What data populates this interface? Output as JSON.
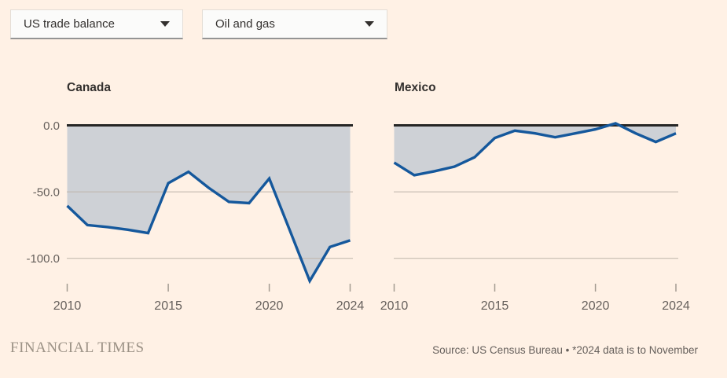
{
  "app": {
    "background_color": "#fff1e5"
  },
  "controls": {
    "metric_dropdown": {
      "value": "US trade balance"
    },
    "category_dropdown": {
      "value": "Oil and gas"
    }
  },
  "chart_data": {
    "type": "area",
    "x": [
      2010,
      2011,
      2012,
      2013,
      2014,
      2015,
      2016,
      2017,
      2018,
      2019,
      2020,
      2021,
      2022,
      2023,
      2024
    ],
    "x_tick_years": [
      2010,
      2015,
      2020,
      2024
    ],
    "x_tick_labels": [
      "2010",
      "2015",
      "2020",
      "2024"
    ],
    "y_ticks": [
      {
        "label": "0.0",
        "value": 0
      },
      {
        "label": "-50.0",
        "value": -50
      },
      {
        "label": "-100.0",
        "value": -100
      }
    ],
    "ylim": [
      -125,
      5
    ],
    "grid": true,
    "series": [
      {
        "name": "Canada",
        "values": [
          -60.5,
          -75,
          -76.5,
          -78.5,
          -81,
          -43.5,
          -35,
          -47,
          -57.5,
          -58.5,
          -40,
          -78.5,
          -117,
          -91.5,
          -86.5
        ]
      },
      {
        "name": "Mexico",
        "values": [
          -28,
          -37.5,
          -34.5,
          -31,
          -24,
          -9.5,
          -4,
          -6,
          -9,
          -6,
          -3,
          1.5,
          -6,
          -12.5,
          -6
        ]
      }
    ],
    "colors": {
      "line": "#15589c",
      "area_fill": "#ced1d6",
      "zero_line": "#262625",
      "gridline": "#beb5aa",
      "tick": "#a39b91",
      "axis_text": "#66605c"
    }
  },
  "footer": {
    "brand": "FINANCIAL TIMES",
    "source": "Source: US Census Bureau • *2024 data is to November"
  }
}
